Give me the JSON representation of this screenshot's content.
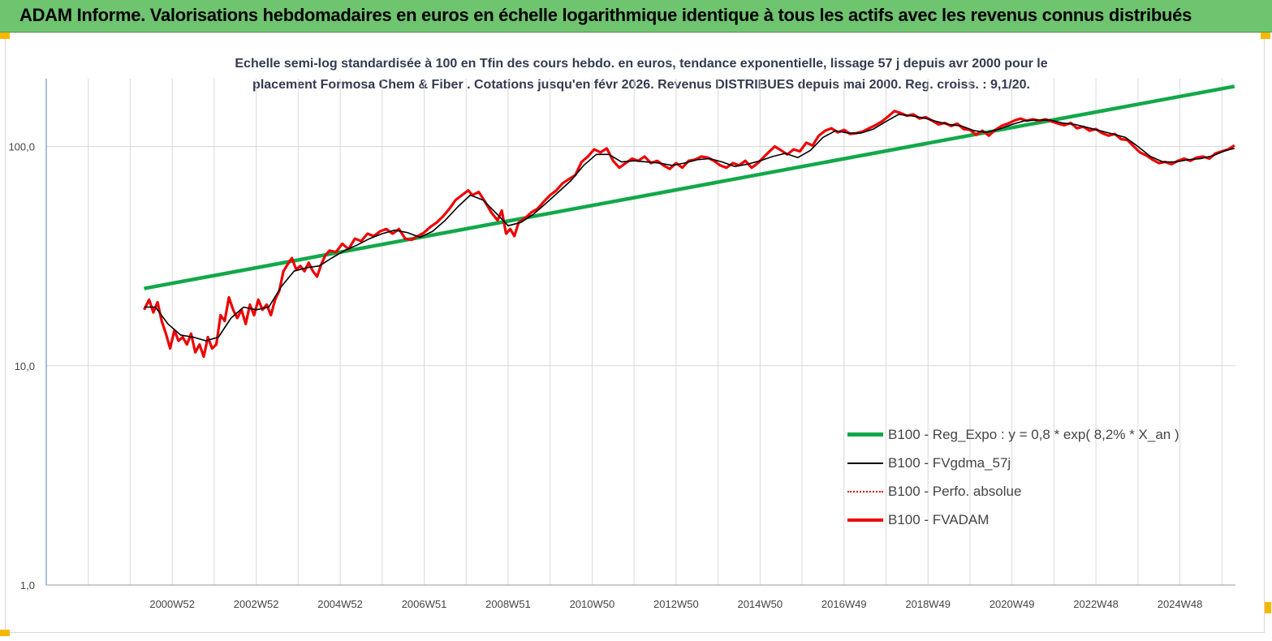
{
  "header": {
    "title": "ADAM Informe. Valorisations hebdomadaires en euros en échelle logarithmique identique à tous les actifs avec les revenus connus distribués"
  },
  "chart_data": {
    "type": "line",
    "title_line1": "Echelle semi-log standardisée à 100 en Tfin des cours hebdo. en euros, tendance exponentielle, lissage 57 j depuis avr 2000 pour le",
    "title_line2": "placement Formosa Chem & Fiber . Cotations jusqu'en févr 2026. Revenus DISTRIBUES depuis mai 2000. Reg. croiss. : 9,1/20.",
    "y_scale": "log",
    "ylim": [
      1,
      200
    ],
    "xlim": [
      1998.0,
      2026.3
    ],
    "y_ticks": [
      {
        "value": 1,
        "label": "1,0"
      },
      {
        "value": 10,
        "label": "10,0"
      },
      {
        "value": 100,
        "label": "100,0"
      }
    ],
    "x_ticks": [
      {
        "value": 2001.0,
        "label": "2000W52"
      },
      {
        "value": 2003.0,
        "label": "2002W52"
      },
      {
        "value": 2005.0,
        "label": "2004W52"
      },
      {
        "value": 2007.0,
        "label": "2006W51"
      },
      {
        "value": 2009.0,
        "label": "2008W51"
      },
      {
        "value": 2011.0,
        "label": "2010W50"
      },
      {
        "value": 2013.0,
        "label": "2012W50"
      },
      {
        "value": 2015.0,
        "label": "2014W50"
      },
      {
        "value": 2017.0,
        "label": "2016W49"
      },
      {
        "value": 2019.0,
        "label": "2018W49"
      },
      {
        "value": 2021.0,
        "label": "2020W49"
      },
      {
        "value": 2023.0,
        "label": "2022W48"
      },
      {
        "value": 2025.0,
        "label": "2024W48"
      }
    ],
    "grid": "vertical",
    "legend_position": "bottom-right",
    "series": [
      {
        "name": "B100 - Reg_Expo : y = 0,8 * exp( 8,2% *  X_an )",
        "color": "#12a84a",
        "style": "thick",
        "points": [
          [
            2000.33,
            22.5
          ],
          [
            2026.3,
            188
          ]
        ]
      },
      {
        "name": "B100 - FVgdma_57j",
        "color": "#000000",
        "style": "thin",
        "points": [
          [
            2000.33,
            18.5
          ],
          [
            2000.6,
            18.5
          ],
          [
            2000.9,
            15.5
          ],
          [
            2001.2,
            13.8
          ],
          [
            2001.5,
            13.5
          ],
          [
            2001.8,
            13.0
          ],
          [
            2002.1,
            13.5
          ],
          [
            2002.4,
            16.5
          ],
          [
            2002.7,
            18.5
          ],
          [
            2003.0,
            18.0
          ],
          [
            2003.3,
            18.5
          ],
          [
            2003.6,
            23
          ],
          [
            2003.9,
            27
          ],
          [
            2004.2,
            28
          ],
          [
            2004.5,
            28.5
          ],
          [
            2004.8,
            31
          ],
          [
            2005.1,
            33.5
          ],
          [
            2005.4,
            35.5
          ],
          [
            2005.7,
            38
          ],
          [
            2006.0,
            40
          ],
          [
            2006.3,
            41.5
          ],
          [
            2006.6,
            40.5
          ],
          [
            2006.9,
            38.5
          ],
          [
            2007.2,
            41
          ],
          [
            2007.5,
            46
          ],
          [
            2007.8,
            53
          ],
          [
            2008.1,
            60
          ],
          [
            2008.4,
            57
          ],
          [
            2008.7,
            50
          ],
          [
            2009.0,
            43.5
          ],
          [
            2009.3,
            45
          ],
          [
            2009.6,
            49
          ],
          [
            2009.9,
            55
          ],
          [
            2010.2,
            62
          ],
          [
            2010.5,
            70
          ],
          [
            2010.8,
            82
          ],
          [
            2011.1,
            92
          ],
          [
            2011.4,
            92
          ],
          [
            2011.7,
            85
          ],
          [
            2012.0,
            86
          ],
          [
            2012.3,
            85
          ],
          [
            2012.6,
            84
          ],
          [
            2012.9,
            82
          ],
          [
            2013.2,
            84
          ],
          [
            2013.5,
            87
          ],
          [
            2013.8,
            88
          ],
          [
            2014.1,
            85
          ],
          [
            2014.4,
            81
          ],
          [
            2014.7,
            83
          ],
          [
            2015.0,
            86
          ],
          [
            2015.3,
            90
          ],
          [
            2015.6,
            93
          ],
          [
            2015.9,
            89
          ],
          [
            2016.2,
            96
          ],
          [
            2016.5,
            110
          ],
          [
            2016.8,
            118
          ],
          [
            2017.1,
            115
          ],
          [
            2017.4,
            115
          ],
          [
            2017.7,
            120
          ],
          [
            2018.0,
            130
          ],
          [
            2018.3,
            140
          ],
          [
            2018.6,
            138
          ],
          [
            2018.9,
            135
          ],
          [
            2019.2,
            130
          ],
          [
            2019.5,
            126
          ],
          [
            2019.8,
            124
          ],
          [
            2020.1,
            118
          ],
          [
            2020.4,
            116
          ],
          [
            2020.7,
            120
          ],
          [
            2021.0,
            126
          ],
          [
            2021.3,
            131
          ],
          [
            2021.6,
            132
          ],
          [
            2021.9,
            132
          ],
          [
            2022.2,
            128
          ],
          [
            2022.5,
            126
          ],
          [
            2022.8,
            122
          ],
          [
            2023.1,
            118
          ],
          [
            2023.4,
            114
          ],
          [
            2023.7,
            110
          ],
          [
            2024.0,
            100
          ],
          [
            2024.3,
            90
          ],
          [
            2024.6,
            85
          ],
          [
            2024.9,
            85
          ],
          [
            2025.2,
            87
          ],
          [
            2025.5,
            88
          ],
          [
            2025.8,
            91
          ],
          [
            2026.1,
            96
          ],
          [
            2026.3,
            98
          ]
        ]
      },
      {
        "name": "B100 - Perfo. absolue",
        "color": "#e00000",
        "style": "dotted",
        "points": []
      },
      {
        "name": "B100 - FVADAM",
        "color": "#ee0000",
        "style": "thick",
        "points": [
          [
            2000.33,
            18
          ],
          [
            2000.45,
            20
          ],
          [
            2000.55,
            17.5
          ],
          [
            2000.65,
            19.5
          ],
          [
            2000.75,
            16
          ],
          [
            2000.85,
            14
          ],
          [
            2000.95,
            12
          ],
          [
            2001.05,
            14.5
          ],
          [
            2001.15,
            13
          ],
          [
            2001.25,
            13.5
          ],
          [
            2001.35,
            12.5
          ],
          [
            2001.45,
            14
          ],
          [
            2001.55,
            11.5
          ],
          [
            2001.65,
            12.5
          ],
          [
            2001.75,
            11
          ],
          [
            2001.85,
            13.5
          ],
          [
            2001.95,
            12
          ],
          [
            2002.05,
            12.5
          ],
          [
            2002.15,
            17
          ],
          [
            2002.25,
            16
          ],
          [
            2002.35,
            20.5
          ],
          [
            2002.45,
            18
          ],
          [
            2002.55,
            16.5
          ],
          [
            2002.65,
            18
          ],
          [
            2002.75,
            15.5
          ],
          [
            2002.85,
            19
          ],
          [
            2002.95,
            17
          ],
          [
            2003.05,
            20
          ],
          [
            2003.15,
            18
          ],
          [
            2003.25,
            19
          ],
          [
            2003.35,
            17
          ],
          [
            2003.45,
            20
          ],
          [
            2003.55,
            22
          ],
          [
            2003.65,
            27
          ],
          [
            2003.75,
            29
          ],
          [
            2003.85,
            31
          ],
          [
            2003.95,
            27.5
          ],
          [
            2004.05,
            28.5
          ],
          [
            2004.15,
            27
          ],
          [
            2004.25,
            29.5
          ],
          [
            2004.35,
            27
          ],
          [
            2004.45,
            25.5
          ],
          [
            2004.55,
            29
          ],
          [
            2004.65,
            32
          ],
          [
            2004.75,
            33.5
          ],
          [
            2004.9,
            33
          ],
          [
            2005.05,
            36
          ],
          [
            2005.2,
            34
          ],
          [
            2005.35,
            38
          ],
          [
            2005.5,
            37
          ],
          [
            2005.65,
            40
          ],
          [
            2005.8,
            39
          ],
          [
            2005.95,
            41
          ],
          [
            2006.1,
            42
          ],
          [
            2006.25,
            40
          ],
          [
            2006.4,
            42
          ],
          [
            2006.55,
            38
          ],
          [
            2006.7,
            37.5
          ],
          [
            2006.85,
            39
          ],
          [
            2007.0,
            40.5
          ],
          [
            2007.15,
            43
          ],
          [
            2007.3,
            45
          ],
          [
            2007.45,
            48
          ],
          [
            2007.6,
            52
          ],
          [
            2007.75,
            57
          ],
          [
            2007.9,
            60
          ],
          [
            2008.05,
            63
          ],
          [
            2008.15,
            60
          ],
          [
            2008.3,
            62
          ],
          [
            2008.45,
            56
          ],
          [
            2008.6,
            50
          ],
          [
            2008.75,
            46
          ],
          [
            2008.85,
            51
          ],
          [
            2008.95,
            40
          ],
          [
            2009.05,
            42
          ],
          [
            2009.15,
            39
          ],
          [
            2009.25,
            45
          ],
          [
            2009.4,
            47
          ],
          [
            2009.55,
            50
          ],
          [
            2009.7,
            52
          ],
          [
            2009.85,
            56
          ],
          [
            2010.0,
            60
          ],
          [
            2010.15,
            63
          ],
          [
            2010.3,
            68
          ],
          [
            2010.45,
            71
          ],
          [
            2010.6,
            74
          ],
          [
            2010.75,
            85
          ],
          [
            2010.9,
            90
          ],
          [
            2011.05,
            97
          ],
          [
            2011.2,
            94
          ],
          [
            2011.35,
            98
          ],
          [
            2011.5,
            86
          ],
          [
            2011.65,
            80
          ],
          [
            2011.8,
            84
          ],
          [
            2011.95,
            88
          ],
          [
            2012.1,
            86
          ],
          [
            2012.25,
            90
          ],
          [
            2012.4,
            84
          ],
          [
            2012.55,
            86
          ],
          [
            2012.7,
            82
          ],
          [
            2012.85,
            79
          ],
          [
            2013.0,
            84
          ],
          [
            2013.15,
            80
          ],
          [
            2013.3,
            86
          ],
          [
            2013.45,
            87
          ],
          [
            2013.6,
            90
          ],
          [
            2013.75,
            89
          ],
          [
            2013.9,
            86
          ],
          [
            2014.05,
            82
          ],
          [
            2014.2,
            80
          ],
          [
            2014.35,
            84
          ],
          [
            2014.5,
            82
          ],
          [
            2014.65,
            86
          ],
          [
            2014.8,
            80
          ],
          [
            2014.95,
            84
          ],
          [
            2015.1,
            90
          ],
          [
            2015.2,
            94
          ],
          [
            2015.35,
            100
          ],
          [
            2015.5,
            96
          ],
          [
            2015.65,
            92
          ],
          [
            2015.8,
            97
          ],
          [
            2015.95,
            95
          ],
          [
            2016.1,
            104
          ],
          [
            2016.25,
            101
          ],
          [
            2016.4,
            112
          ],
          [
            2016.55,
            118
          ],
          [
            2016.7,
            121
          ],
          [
            2016.85,
            116
          ],
          [
            2017.0,
            119
          ],
          [
            2017.15,
            114
          ],
          [
            2017.3,
            115
          ],
          [
            2017.45,
            117
          ],
          [
            2017.6,
            121
          ],
          [
            2017.75,
            125
          ],
          [
            2017.9,
            130
          ],
          [
            2018.05,
            137
          ],
          [
            2018.2,
            145
          ],
          [
            2018.35,
            142
          ],
          [
            2018.5,
            138
          ],
          [
            2018.65,
            140
          ],
          [
            2018.8,
            134
          ],
          [
            2018.95,
            136
          ],
          [
            2019.1,
            131
          ],
          [
            2019.25,
            126
          ],
          [
            2019.4,
            128
          ],
          [
            2019.55,
            124
          ],
          [
            2019.7,
            127
          ],
          [
            2019.85,
            120
          ],
          [
            2020.0,
            119
          ],
          [
            2020.15,
            113
          ],
          [
            2020.3,
            118
          ],
          [
            2020.45,
            112
          ],
          [
            2020.6,
            119
          ],
          [
            2020.75,
            124
          ],
          [
            2020.9,
            127
          ],
          [
            2021.05,
            131
          ],
          [
            2021.2,
            134
          ],
          [
            2021.35,
            131
          ],
          [
            2021.5,
            133
          ],
          [
            2021.65,
            131
          ],
          [
            2021.8,
            133
          ],
          [
            2021.95,
            130
          ],
          [
            2022.1,
            127
          ],
          [
            2022.25,
            125
          ],
          [
            2022.4,
            128
          ],
          [
            2022.55,
            121
          ],
          [
            2022.7,
            123
          ],
          [
            2022.85,
            118
          ],
          [
            2023.0,
            120
          ],
          [
            2023.15,
            115
          ],
          [
            2023.3,
            112
          ],
          [
            2023.45,
            114
          ],
          [
            2023.6,
            108
          ],
          [
            2023.75,
            107
          ],
          [
            2023.9,
            100
          ],
          [
            2024.05,
            94
          ],
          [
            2024.2,
            91
          ],
          [
            2024.35,
            87
          ],
          [
            2024.5,
            84
          ],
          [
            2024.65,
            85
          ],
          [
            2024.8,
            83
          ],
          [
            2024.95,
            86
          ],
          [
            2025.1,
            88
          ],
          [
            2025.25,
            86
          ],
          [
            2025.4,
            89
          ],
          [
            2025.55,
            90
          ],
          [
            2025.7,
            88
          ],
          [
            2025.85,
            93
          ],
          [
            2026.0,
            95
          ],
          [
            2026.15,
            97
          ],
          [
            2026.3,
            101
          ]
        ]
      }
    ]
  }
}
